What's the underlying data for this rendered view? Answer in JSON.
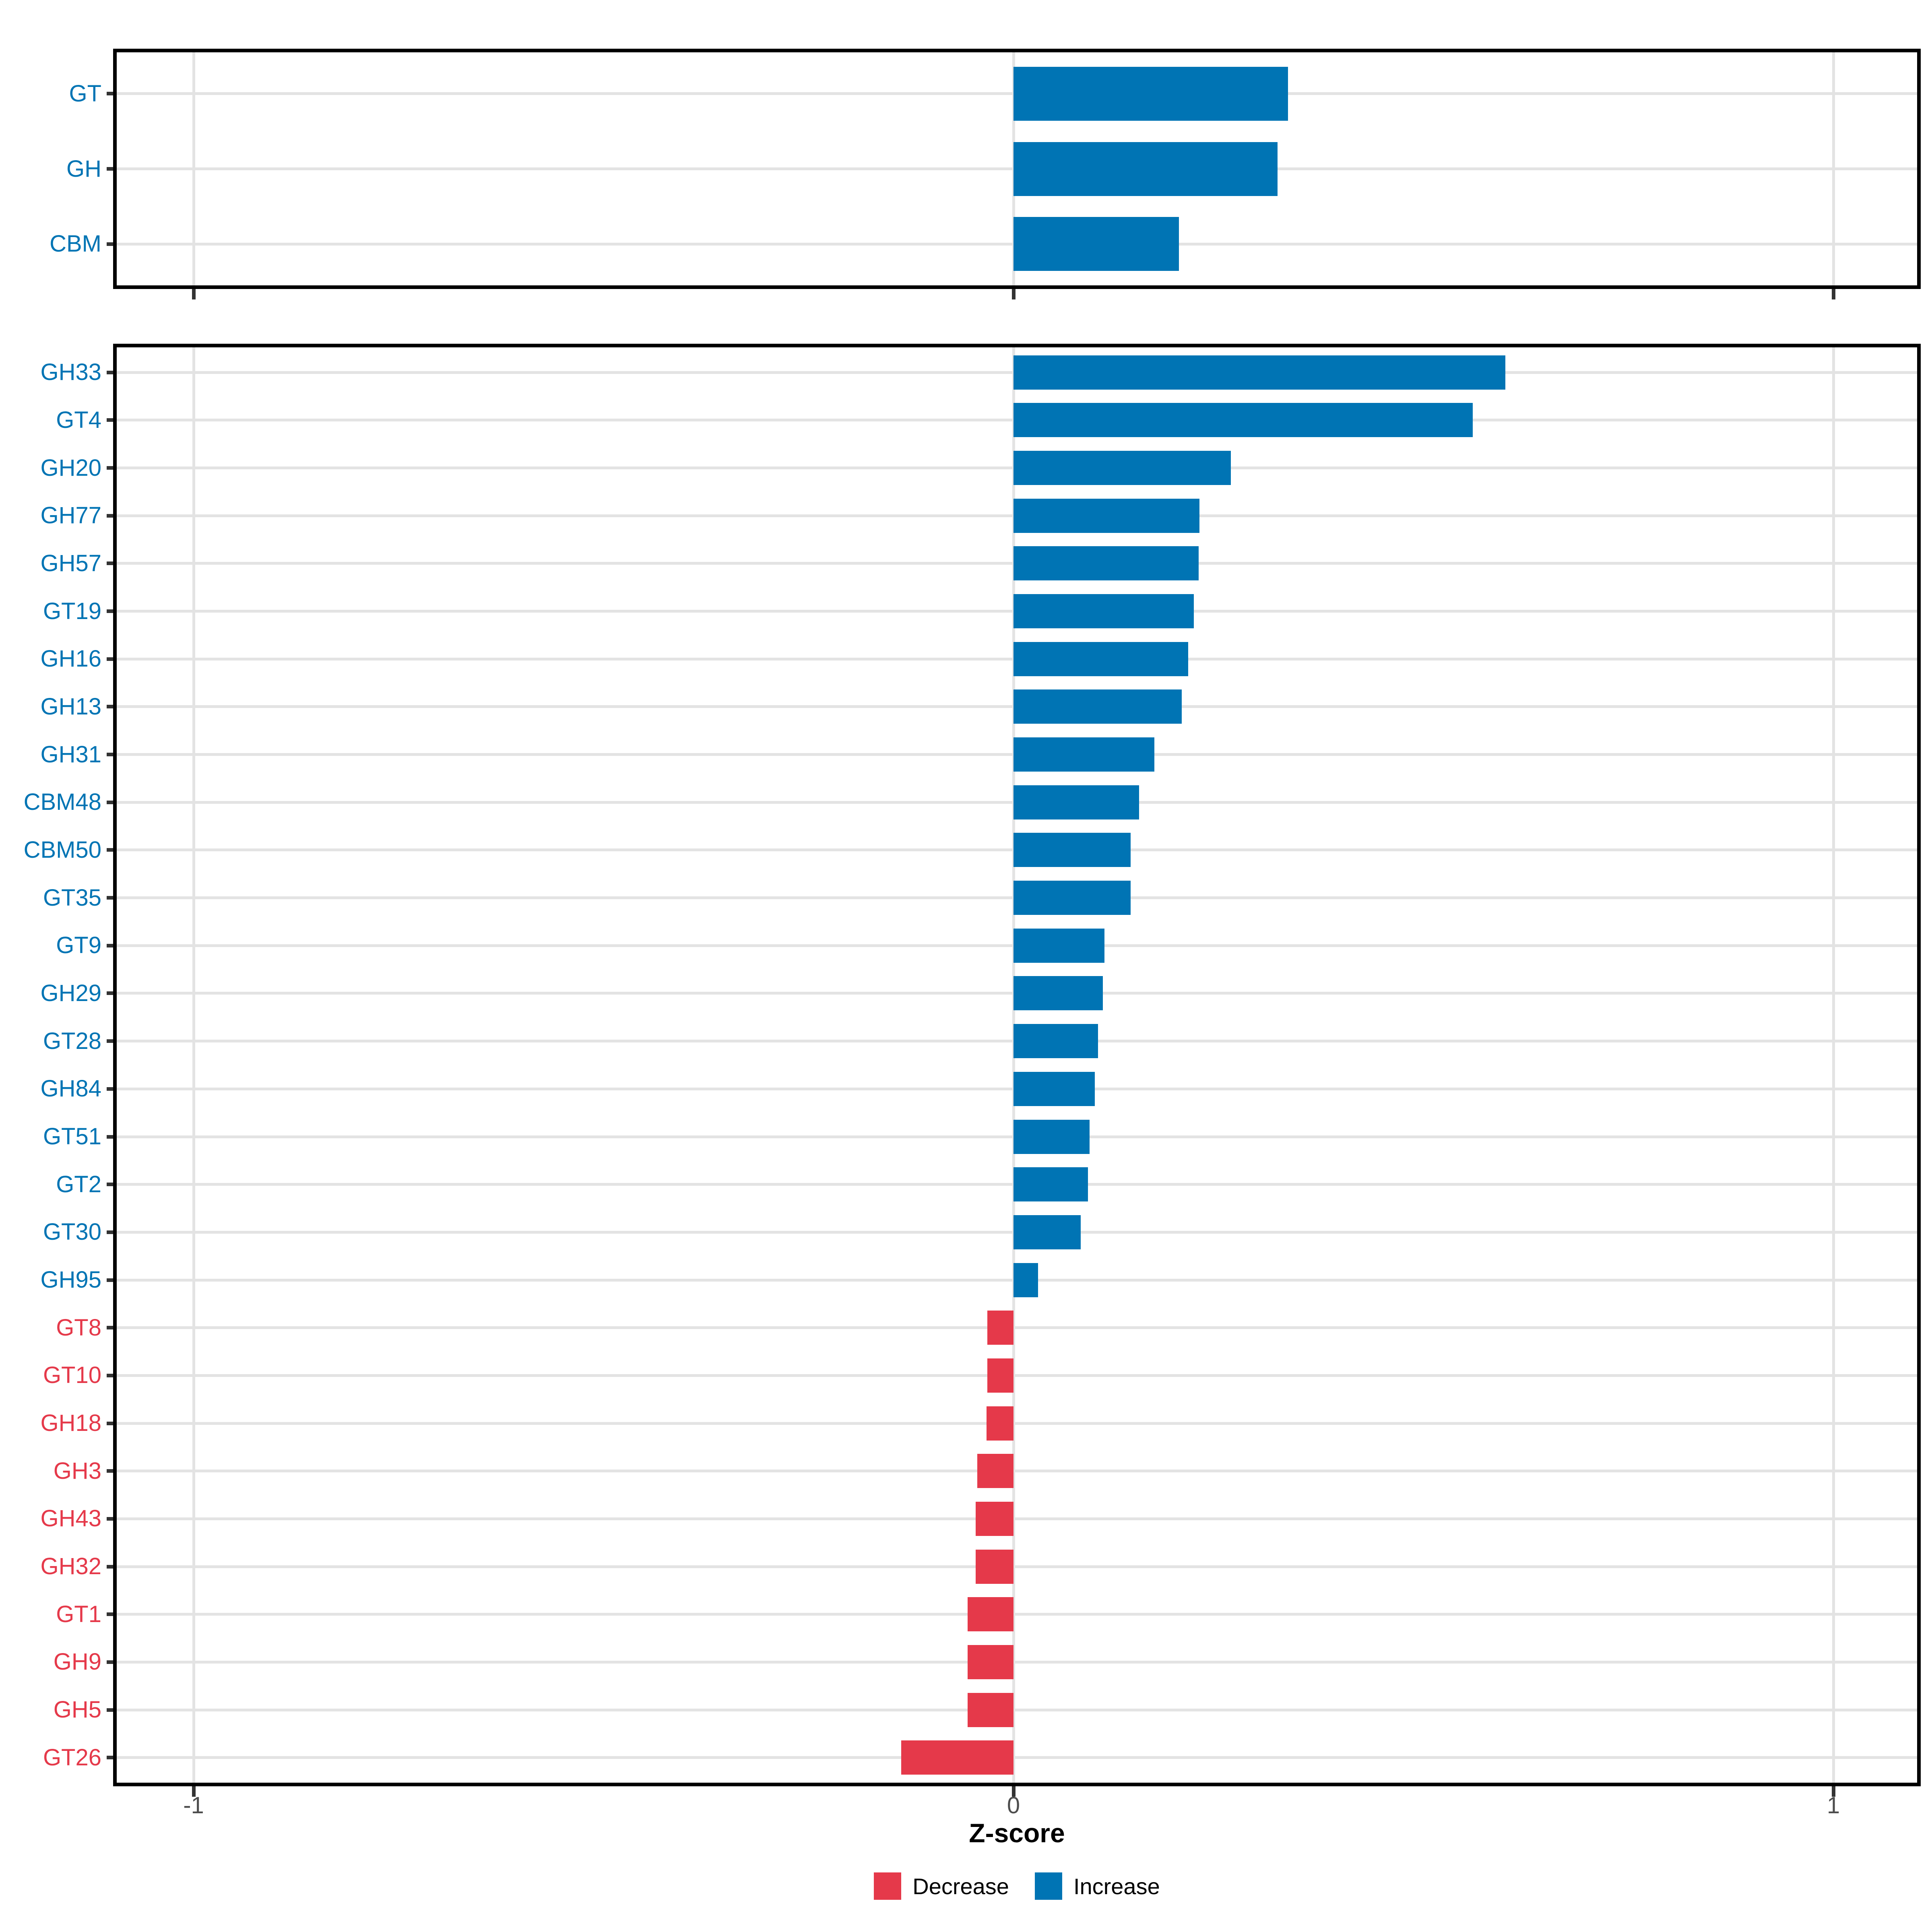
{
  "figure": {
    "x_axis": {
      "title": "Z-score",
      "tick_labels": [
        "-1",
        "0",
        "1"
      ],
      "tick_values": [
        -1,
        0,
        1
      ],
      "range": [
        -1.1,
        1.1
      ]
    },
    "legend": {
      "items": [
        {
          "label": "Decrease",
          "color": "#E5394A"
        },
        {
          "label": "Increase",
          "color": "#0074B4"
        }
      ]
    },
    "colors": {
      "increase": "#0074B4",
      "decrease": "#E5394A",
      "axis_text": "#4D4D4D",
      "gridline": "#E3E3E3",
      "panel_border": "#000000"
    }
  },
  "chart_data": [
    {
      "type": "bar",
      "orientation": "horizontal",
      "panel": "category-summary",
      "title": "",
      "xlabel": "Z-score",
      "ylabel": "",
      "xlim": [
        -1.1,
        1.1
      ],
      "xticks": [
        -1,
        0,
        1
      ],
      "grid": true,
      "legend_position": "bottom",
      "categories": [
        "GT",
        "GH",
        "CBM"
      ],
      "values": [
        0.335,
        0.322,
        0.202
      ],
      "directions": [
        "increase",
        "increase",
        "increase"
      ]
    },
    {
      "type": "bar",
      "orientation": "horizontal",
      "panel": "cazyme-families",
      "title": "",
      "xlabel": "Z-score",
      "ylabel": "",
      "xlim": [
        -1.1,
        1.1
      ],
      "xticks": [
        -1,
        0,
        1
      ],
      "grid": true,
      "legend_position": "bottom",
      "categories": [
        "GH33",
        "GT4",
        "GH20",
        "GH77",
        "GH57",
        "GT19",
        "GH16",
        "GH13",
        "GH31",
        "CBM48",
        "CBM50",
        "GT35",
        "GT9",
        "GH29",
        "GT28",
        "GH84",
        "GT51",
        "GT2",
        "GT30",
        "GH95",
        "GT8",
        "GT10",
        "GH18",
        "GH3",
        "GH43",
        "GH32",
        "GT1",
        "GH9",
        "GH5",
        "GT26"
      ],
      "values": [
        0.6,
        0.56,
        0.265,
        0.227,
        0.226,
        0.22,
        0.213,
        0.205,
        0.172,
        0.153,
        0.143,
        0.143,
        0.111,
        0.109,
        0.103,
        0.099,
        0.093,
        0.091,
        0.082,
        0.03,
        -0.032,
        -0.032,
        -0.033,
        -0.044,
        -0.046,
        -0.046,
        -0.056,
        -0.056,
        -0.056,
        -0.137
      ],
      "directions": [
        "increase",
        "increase",
        "increase",
        "increase",
        "increase",
        "increase",
        "increase",
        "increase",
        "increase",
        "increase",
        "increase",
        "increase",
        "increase",
        "increase",
        "increase",
        "increase",
        "increase",
        "increase",
        "increase",
        "increase",
        "decrease",
        "decrease",
        "decrease",
        "decrease",
        "decrease",
        "decrease",
        "decrease",
        "decrease",
        "decrease",
        "decrease"
      ]
    }
  ]
}
